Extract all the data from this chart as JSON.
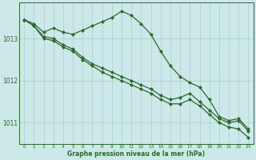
{
  "xlabel": "Graphe pression niveau de la mer (hPa)",
  "hours": [
    0,
    1,
    2,
    3,
    4,
    5,
    6,
    7,
    8,
    9,
    10,
    11,
    12,
    13,
    14,
    15,
    16,
    17,
    18,
    19,
    20,
    21,
    22,
    23
  ],
  "line_high": [
    1013.45,
    1013.35,
    1013.15,
    1013.25,
    1013.15,
    1013.1,
    1013.2,
    1013.3,
    1013.4,
    1013.5,
    1013.65,
    1013.55,
    1013.35,
    1013.1,
    1012.7,
    1012.35,
    1012.1,
    1011.95,
    1011.85,
    1011.55,
    1011.15,
    1011.05,
    1011.1,
    1010.85
  ],
  "line_mid": [
    1013.45,
    1013.3,
    1013.05,
    1013.0,
    1012.85,
    1012.75,
    1012.55,
    1012.4,
    1012.3,
    1012.2,
    1012.1,
    1012.0,
    1011.9,
    1011.8,
    1011.65,
    1011.55,
    1011.6,
    1011.7,
    1011.5,
    1011.3,
    1011.1,
    1011.0,
    1011.05,
    1010.8
  ],
  "line_low": [
    1013.45,
    1013.3,
    1013.0,
    1012.95,
    1012.8,
    1012.7,
    1012.5,
    1012.35,
    1012.2,
    1012.1,
    1012.0,
    1011.9,
    1011.8,
    1011.7,
    1011.55,
    1011.45,
    1011.45,
    1011.55,
    1011.4,
    1011.2,
    1011.0,
    1010.9,
    1010.85,
    1010.65
  ],
  "line_color": "#2d6a2d",
  "bg_color": "#cce8e8",
  "grid_color": "#aacece",
  "ylim_min": 1010.5,
  "ylim_max": 1013.85,
  "yticks": [
    1011,
    1012,
    1013
  ],
  "marker": "D",
  "marker_size": 2.0,
  "linewidth": 0.9
}
